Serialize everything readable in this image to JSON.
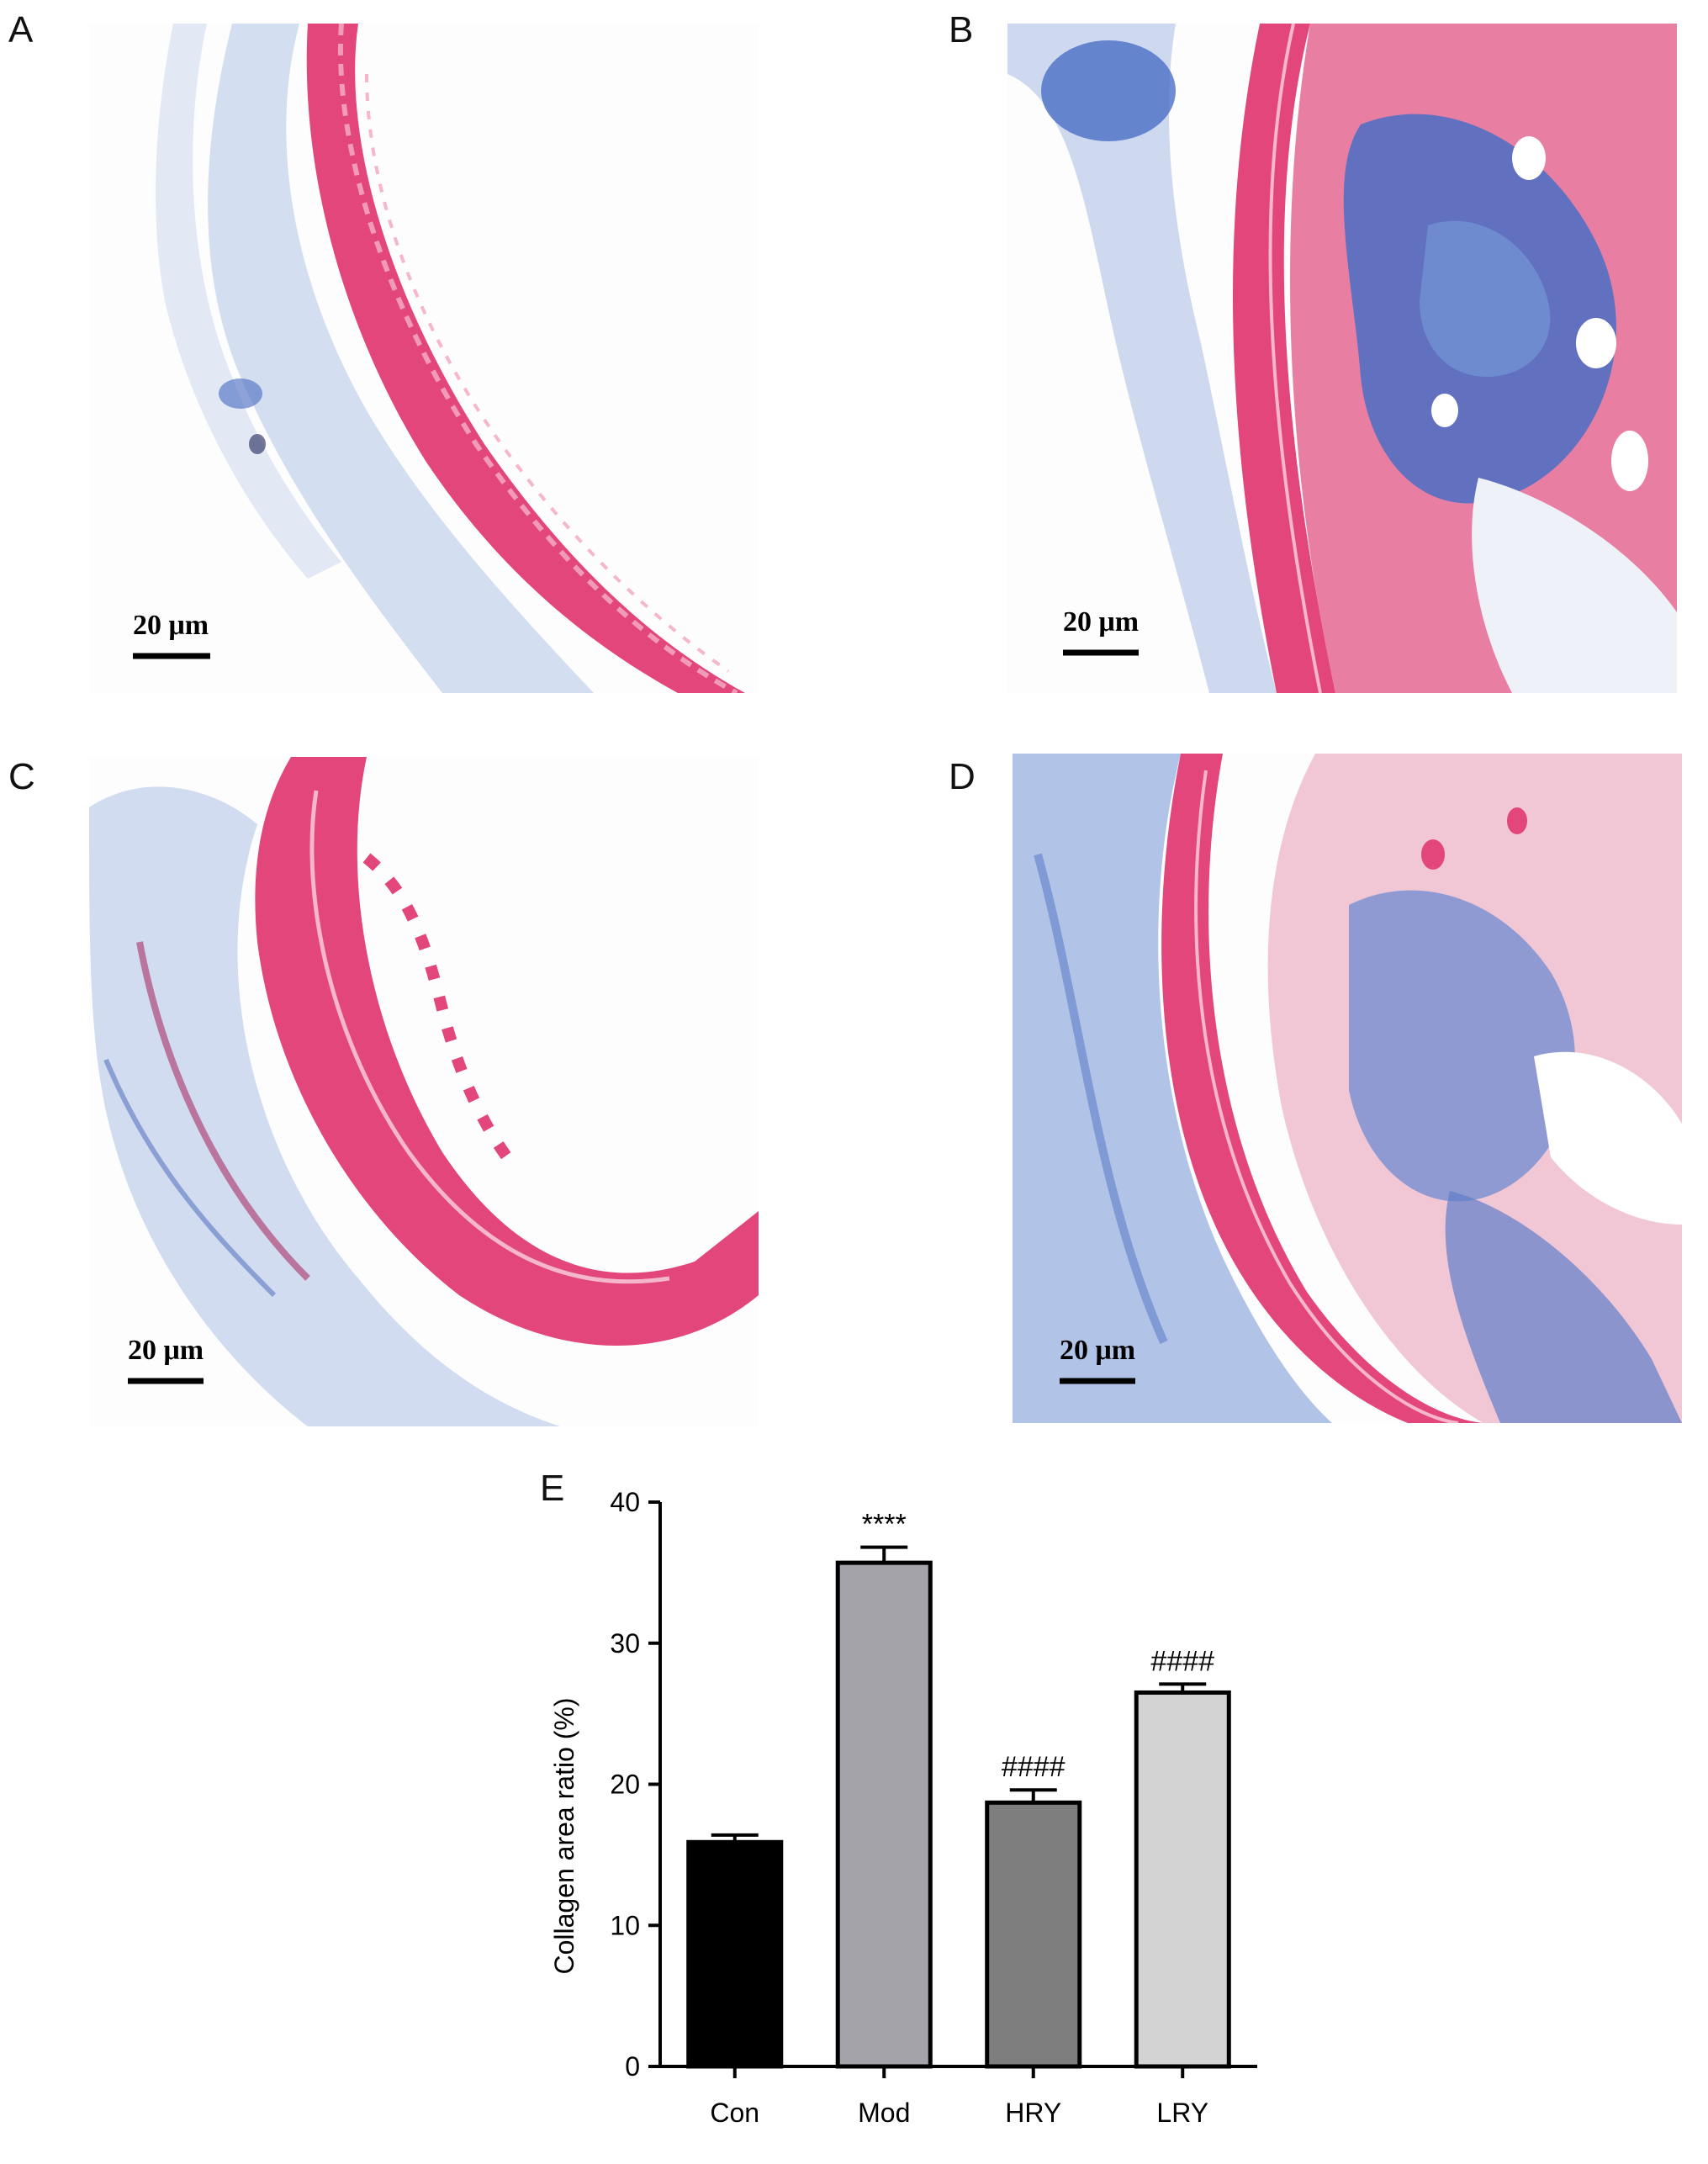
{
  "panels": [
    {
      "label": "A",
      "scalebar": "20 μm"
    },
    {
      "label": "B",
      "scalebar": "20 μm"
    },
    {
      "label": "C",
      "scalebar": "20 μm"
    },
    {
      "label": "D",
      "scalebar": "20 μm"
    }
  ],
  "colors": {
    "elastin_pink": "#e2467a",
    "collagen_blue": "#4a6fc4",
    "pale_blue": "#b9c9e6",
    "background": "#fdfdfe"
  },
  "chart_label": "E",
  "chart_data": {
    "type": "bar",
    "categories": [
      "Con",
      "Mod",
      "HRY",
      "LRY"
    ],
    "values": [
      15.9,
      35.7,
      18.7,
      26.5
    ],
    "errors": [
      0.5,
      1.1,
      0.9,
      0.6
    ],
    "significance": [
      "",
      "****",
      "####",
      "####"
    ],
    "bar_colors": [
      "#000000",
      "#a3a3a9",
      "#7e7e7e",
      "#d3d3d3"
    ],
    "title": "",
    "xlabel": "",
    "ylabel": "Collagen area ratio (%)",
    "ylim": [
      0,
      40
    ],
    "yticks": [
      0,
      10,
      20,
      30,
      40
    ],
    "grid": false
  }
}
